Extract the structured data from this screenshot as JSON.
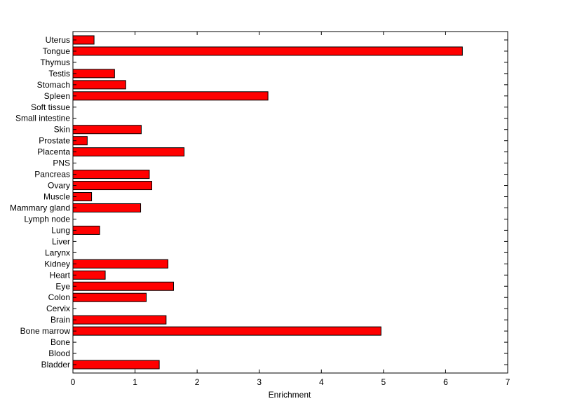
{
  "chart_data": {
    "type": "bar",
    "orientation": "horizontal",
    "xlabel": "Enrichment",
    "ylabel": "",
    "title": "",
    "xlim": [
      0,
      7
    ],
    "xticks": [
      0,
      1,
      2,
      3,
      4,
      5,
      6,
      7
    ],
    "grid": false,
    "bar_color": "#ff0000",
    "edge_color": "#000000",
    "categories": [
      "Uterus",
      "Tongue",
      "Thymus",
      "Testis",
      "Stomach",
      "Spleen",
      "Soft tissue",
      "Small intestine",
      "Skin",
      "Prostate",
      "Placenta",
      "PNS",
      "Pancreas",
      "Ovary",
      "Muscle",
      "Mammary gland",
      "Lymph node",
      "Lung",
      "Liver",
      "Larynx",
      "Kidney",
      "Heart",
      "Eye",
      "Colon",
      "Cervix",
      "Brain",
      "Bone marrow",
      "Bone",
      "Blood",
      "Bladder"
    ],
    "values": [
      0.34,
      6.27,
      0,
      0.67,
      0.85,
      3.14,
      0,
      0,
      1.1,
      0.23,
      1.79,
      0,
      1.23,
      1.27,
      0.3,
      1.09,
      0,
      0.43,
      0,
      0,
      1.53,
      0.52,
      1.62,
      1.18,
      0,
      1.5,
      4.96,
      0,
      0,
      1.39
    ]
  }
}
